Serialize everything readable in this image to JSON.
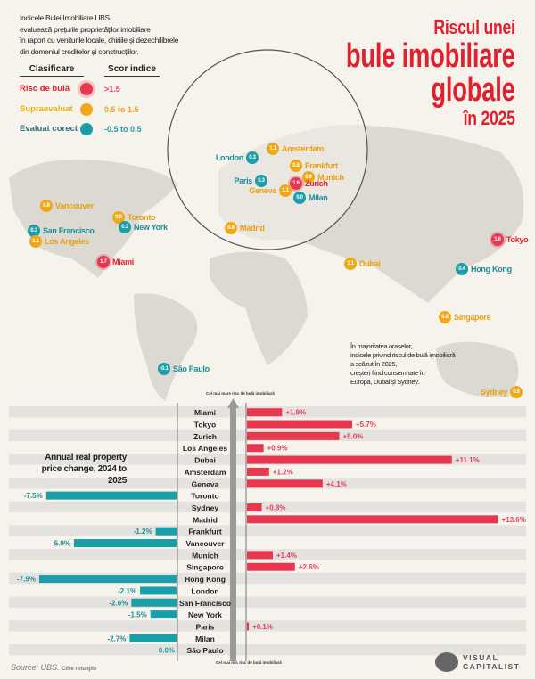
{
  "intro": [
    "Indicele Bulei Imobiliare UBS",
    "evaluează prețurile proprietăților imobiliare",
    "în raport cu veniturile locale, chiriile și dezechilibrele",
    "din domeniul creditelor și construcțiilor."
  ],
  "legend": {
    "header_class": "Clasificare",
    "header_score": "Scor indice",
    "items": [
      {
        "label": "Risc de bulă",
        "range": ">1.5",
        "color": "#e8384f"
      },
      {
        "label": "Supraevaluat",
        "range": "0.5 to 1.5",
        "color": "#f0a818"
      },
      {
        "label": "Evaluat corect",
        "range": "-0.5 to 0.5",
        "color": "#1a9ea8"
      }
    ]
  },
  "title": {
    "line1": "Riscul unei",
    "line2": "bule imobiliare",
    "line3": "globale",
    "line4": "în 2025"
  },
  "map_cities": [
    {
      "name": "Vancouver",
      "score": "0.8",
      "cls": "y"
    },
    {
      "name": "Toronto",
      "score": "0.8",
      "cls": "y"
    },
    {
      "name": "San Francisco",
      "score": "0.3",
      "cls": "t"
    },
    {
      "name": "New York",
      "score": "0.3",
      "cls": "t"
    },
    {
      "name": "Los Angeles",
      "score": "1.1",
      "cls": "y"
    },
    {
      "name": "Miami",
      "score": "1.7",
      "cls": "r"
    },
    {
      "name": "London",
      "score": "0.3",
      "cls": "t"
    },
    {
      "name": "Amsterdam",
      "score": "1.1",
      "cls": "y"
    },
    {
      "name": "Frankfurt",
      "score": "0.8",
      "cls": "y"
    },
    {
      "name": "Munich",
      "score": "0.9",
      "cls": "y"
    },
    {
      "name": "Paris",
      "score": "0.3",
      "cls": "t"
    },
    {
      "name": "Zurich",
      "score": "1.6",
      "cls": "r"
    },
    {
      "name": "Geneva",
      "score": "1.1",
      "cls": "y"
    },
    {
      "name": "Milan",
      "score": "0.0",
      "cls": "t"
    },
    {
      "name": "Madrid",
      "score": "0.8",
      "cls": "y"
    },
    {
      "name": "Dubai",
      "score": "1.1",
      "cls": "y"
    },
    {
      "name": "Tokyo",
      "score": "1.6",
      "cls": "r"
    },
    {
      "name": "Hong Kong",
      "score": "0.4",
      "cls": "t"
    },
    {
      "name": "Singapore",
      "score": "0.8",
      "cls": "y"
    },
    {
      "name": "Sydney",
      "score": "0.8",
      "cls": "y"
    },
    {
      "name": "São Paulo",
      "score": "-0.1",
      "cls": "t"
    }
  ],
  "note": [
    "În majoritatea orașelor,",
    "indicele privind riscul de bulă imobiliară",
    "a scăzut în 2025,",
    "creșteri fiind consemnate în",
    "Europa, Dubai și Sydney."
  ],
  "chart_data": {
    "type": "bar",
    "orientation": "horizontal",
    "title": "Annual real property price change, 2024 to 2025",
    "axis_top_label": "Cel mai mare risc de bulă imobiliară",
    "axis_bottom_label": "Cel mai mic risc de bulă imobiliară",
    "categories": [
      "Miami",
      "Tokyo",
      "Zurich",
      "Los Angeles",
      "Dubai",
      "Amsterdam",
      "Geneva",
      "Toronto",
      "Sydney",
      "Madrid",
      "Frankfurt",
      "Vancouver",
      "Munich",
      "Singapore",
      "Hong Kong",
      "London",
      "San Francisco",
      "New York",
      "Paris",
      "Milan",
      "São Paulo"
    ],
    "values": [
      1.9,
      5.7,
      5.0,
      0.9,
      11.1,
      1.2,
      4.1,
      -7.5,
      0.8,
      13.6,
      -1.2,
      -5.9,
      1.4,
      2.6,
      -7.9,
      -2.1,
      -2.6,
      -1.5,
      0.1,
      -2.7,
      0.0
    ],
    "value_labels": [
      "+1.9%",
      "+5.7%",
      "+5.0%",
      "+0.9%",
      "+11.1%",
      "+1.2%",
      "+4.1%",
      "-7.5%",
      "+0.8%",
      "+13.6%",
      "-1.2%",
      "-5.9%",
      "+1.4%",
      "+2.6%",
      "-7.9%",
      "-2.1%",
      "-2.6%",
      "-1.5%",
      "+0.1%",
      "-2.7%",
      "0.0%"
    ],
    "colors": {
      "positive": "#e8384f",
      "negative": "#1a9ea8"
    }
  },
  "footer": {
    "source": "Source: UBS.",
    "source_note": "Cifre rotunjite",
    "brand_line1": "VISUAL",
    "brand_line2": "CAPITALIST"
  }
}
